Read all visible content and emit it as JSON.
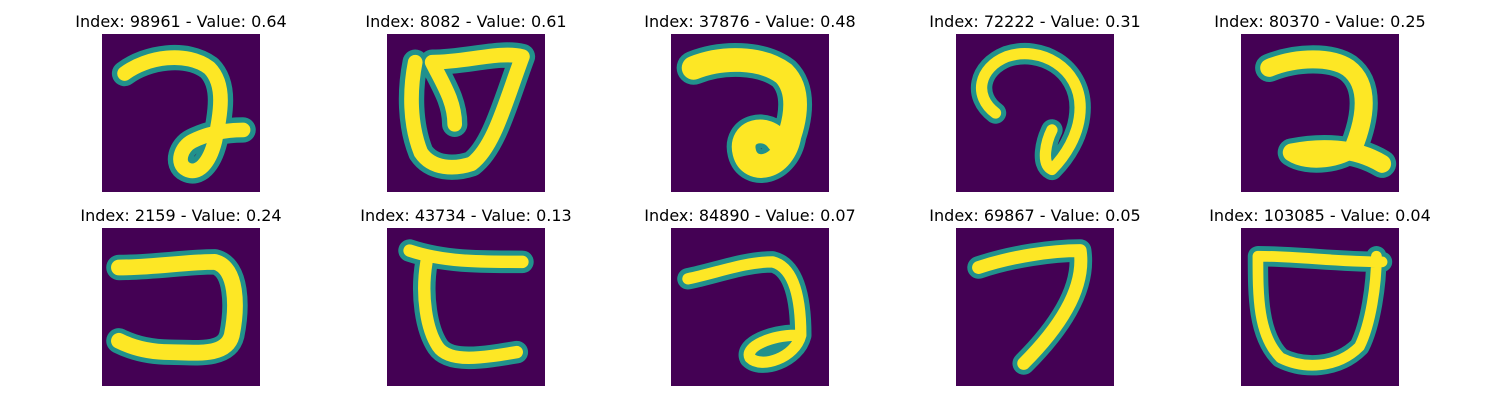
{
  "colors": {
    "background": "#440154",
    "edge": "#21918c",
    "mid": "#5ec962",
    "ink": "#fde725"
  },
  "panels": [
    {
      "title": "Index: 98961 - Value: 0.64",
      "icon": "handwritten-character-loop-hook"
    },
    {
      "title": "Index: 8082 - Value: 0.61",
      "icon": "handwritten-character-open-cup"
    },
    {
      "title": "Index: 37876 - Value: 0.48",
      "icon": "handwritten-character-loop-hook"
    },
    {
      "title": "Index: 72222 - Value: 0.31",
      "icon": "handwritten-character-curl"
    },
    {
      "title": "Index: 80370 - Value: 0.25",
      "icon": "handwritten-character-hook"
    },
    {
      "title": "Index: 2159 - Value: 0.24",
      "icon": "handwritten-character-open-box"
    },
    {
      "title": "Index: 43734 - Value: 0.13",
      "icon": "handwritten-character-c-shape"
    },
    {
      "title": "Index: 84890 - Value: 0.07",
      "icon": "handwritten-character-loop-hook"
    },
    {
      "title": "Index: 69867 - Value: 0.05",
      "icon": "handwritten-character-seven"
    },
    {
      "title": "Index: 103085 - Value: 0.04",
      "icon": "handwritten-character-cup"
    }
  ]
}
